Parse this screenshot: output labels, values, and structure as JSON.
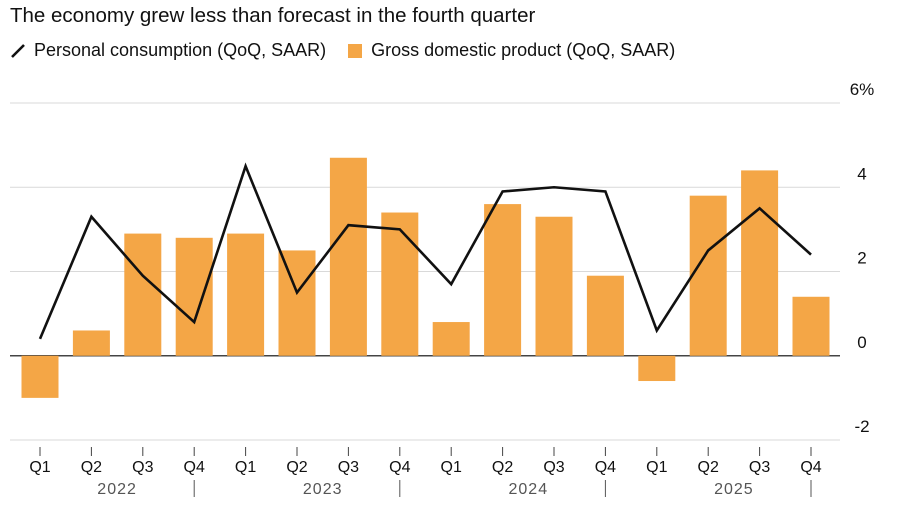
{
  "title": "The economy grew less than forecast in the fourth quarter",
  "colors": {
    "bar": "#F4A646",
    "line": "#111111",
    "grid": "#d9d9d9",
    "zero": "#444444",
    "text": "#111111",
    "muted": "#555555"
  },
  "legend": [
    {
      "label": "Personal consumption (QoQ, SAAR)",
      "icon": "line-swatch-icon"
    },
    {
      "label": "Gross domestic product (QoQ, SAAR)",
      "icon": "bar-swatch-icon"
    }
  ],
  "chart_data": {
    "type": "bar",
    "title": "The economy grew less than forecast in the fourth quarter",
    "categories": [
      "Q1",
      "Q2",
      "Q3",
      "Q4",
      "Q1",
      "Q2",
      "Q3",
      "Q4",
      "Q1",
      "Q2",
      "Q3",
      "Q4",
      "Q1",
      "Q2",
      "Q3",
      "Q4"
    ],
    "year_groups": [
      {
        "label": "2022",
        "span": 4
      },
      {
        "label": "2023",
        "span": 4
      },
      {
        "label": "2024",
        "span": 4
      },
      {
        "label": "2025",
        "span": 4
      }
    ],
    "series": [
      {
        "name": "Gross domestic product (QoQ, SAAR)",
        "type": "bar",
        "values": [
          -1.0,
          0.6,
          2.9,
          2.8,
          2.9,
          2.5,
          4.7,
          3.4,
          0.8,
          3.6,
          3.3,
          1.9,
          -0.6,
          3.8,
          4.4,
          1.4
        ]
      },
      {
        "name": "Personal consumption (QoQ, SAAR)",
        "type": "line",
        "values": [
          0.4,
          3.3,
          1.9,
          0.8,
          4.5,
          1.5,
          3.1,
          3.0,
          1.7,
          3.9,
          4.0,
          3.9,
          0.6,
          2.5,
          3.5,
          2.4
        ]
      }
    ],
    "y_ticks": [
      6,
      4,
      2,
      0,
      -2
    ],
    "y_tick_labels": [
      "6%",
      "4",
      "2",
      "0",
      "-2"
    ],
    "ylim": [
      -2,
      6
    ],
    "xlabel": "",
    "ylabel": "",
    "grid": true,
    "legend_position": "top-left",
    "y_axis_side": "right"
  }
}
